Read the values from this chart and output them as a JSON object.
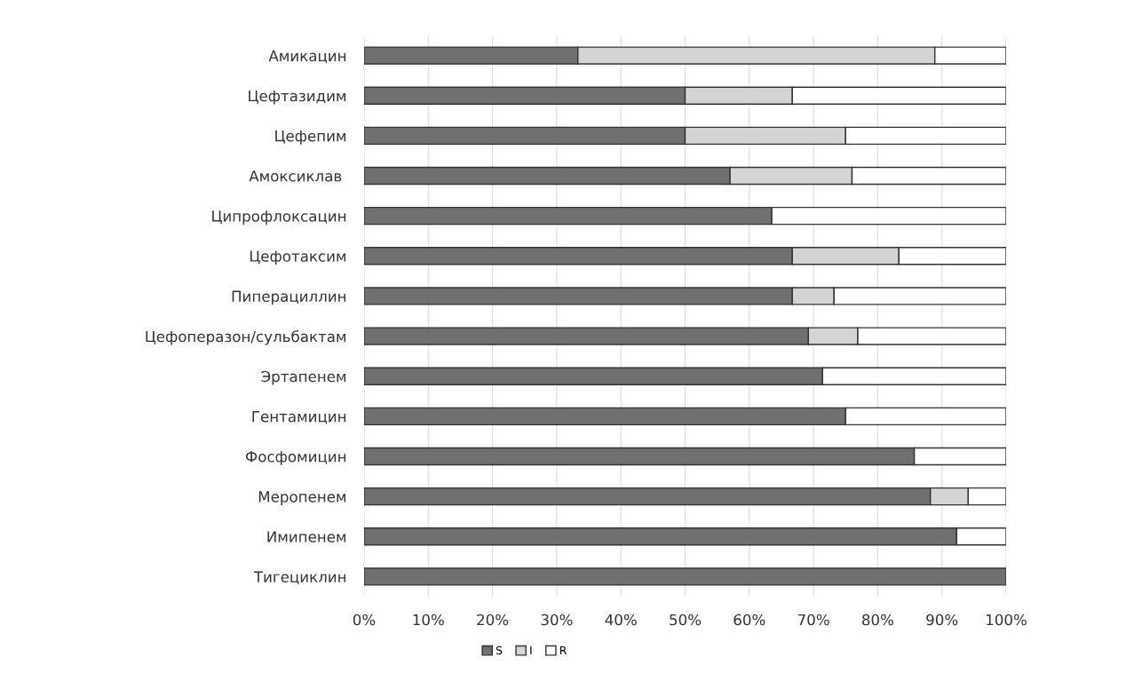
{
  "chart_data": {
    "type": "bar",
    "orientation": "horizontal",
    "stacked": true,
    "categories": [
      "Амикацин",
      "Цефтазидим",
      "Цефепим",
      "Амоксиклав ",
      "Ципрофлоксацин",
      "Цефотаксим",
      "Пиперациллин",
      "Цефоперазон/сульбактам",
      "Эртапенем",
      "Гентамицин",
      "Фосфомицин",
      "Меропенем",
      "Имипенем",
      "Тигециклин"
    ],
    "series": [
      {
        "name": "S",
        "color": "#707070",
        "values": [
          33.3,
          50,
          50,
          57,
          63.5,
          66.7,
          66.7,
          69.2,
          71.4,
          75,
          85.7,
          88.2,
          92.3,
          100
        ]
      },
      {
        "name": "I",
        "color": "#d4d4d4",
        "values": [
          55.6,
          16.7,
          25,
          19,
          0,
          16.6,
          6.5,
          7.7,
          0,
          0,
          0,
          5.9,
          0,
          0
        ]
      },
      {
        "name": "R",
        "color": "#ffffff",
        "values": [
          11.1,
          33.3,
          25,
          24,
          36.5,
          16.7,
          26.8,
          23.1,
          28.6,
          25,
          14.3,
          5.9,
          7.7,
          0
        ]
      }
    ],
    "xlim": [
      0,
      100
    ],
    "xticks": [
      {
        "value": 0,
        "label": "0%"
      },
      {
        "value": 10,
        "label": "10%"
      },
      {
        "value": 20,
        "label": "20%"
      },
      {
        "value": 30,
        "label": "30%"
      },
      {
        "value": 40,
        "label": "40%"
      },
      {
        "value": 50,
        "label": "50%"
      },
      {
        "value": 60,
        "label": "60%"
      },
      {
        "value": 70,
        "label": "70%"
      },
      {
        "value": 80,
        "label": "80%"
      },
      {
        "value": 90,
        "label": "90%"
      },
      {
        "value": 100,
        "label": "100%"
      }
    ],
    "grid": "x",
    "legend": "bottom"
  }
}
